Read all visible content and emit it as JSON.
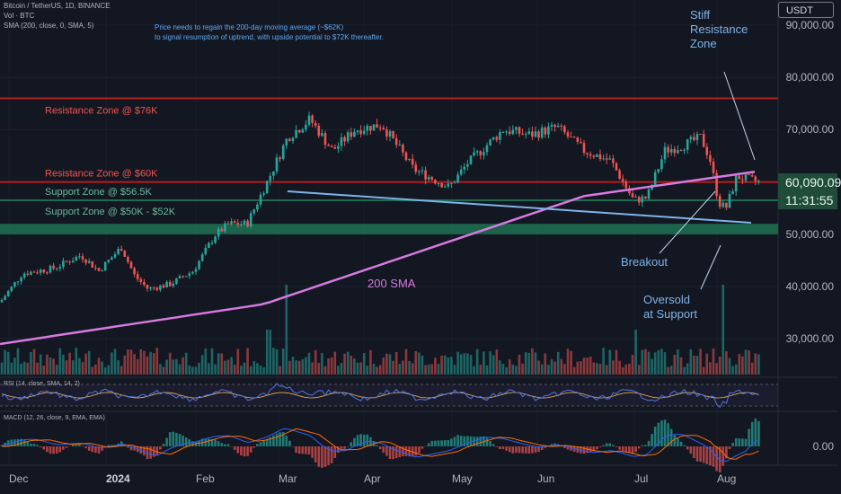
{
  "header": {
    "symbol_line": "Bitcoin / TetherUS, 1D, BINANCE",
    "vol_line": "Vol · BTC",
    "sma_line": "SMA (200, close, 0, SMA, 5)",
    "rsi_line": "RSI (14, close, SMA, 14, 2)",
    "macd_line": "MACD (12, 26, close, 9, EMA, EMA)"
  },
  "note": {
    "line1": "Price needs to regain the 200-day moving average (~$62K)",
    "line2": "to signal resumption of uptrend, with upside potential to $72K thereafter."
  },
  "price_axis": {
    "currency": "USDT",
    "ticks": [
      "90,000.00",
      "80,000.00",
      "70,000.00",
      "50,000.00",
      "40,000.00",
      "30,000.00"
    ],
    "current_price": "60,090.09",
    "countdown": "11:31:55",
    "macd_zero": "0.00"
  },
  "time_axis": {
    "labels": [
      "Dec",
      "2024",
      "Feb",
      "Mar",
      "Apr",
      "May",
      "Jun",
      "Jul",
      "Aug"
    ]
  },
  "colors": {
    "background": "#131722",
    "up": "#26a69a",
    "down": "#ef5350",
    "resistance": "#b71c1c",
    "support": "#1e6b50",
    "sma": "#d77ae0",
    "trendline": "#7fb3e8",
    "annotation": "#7fb3e8"
  },
  "chart_data": {
    "type": "candlestick",
    "y_range": [
      22000,
      94000
    ],
    "sma200": {
      "name": "200 SMA",
      "value_now": 62000
    },
    "levels": [
      {
        "label": "Resistance Zone @ $76K",
        "value": 76000,
        "kind": "resistance"
      },
      {
        "label": "Resistance Zone @ $60K",
        "value": 60000,
        "kind": "resistance"
      },
      {
        "label": "Support Zone @ $56.5K",
        "value": 56500,
        "kind": "support"
      },
      {
        "label": "Support Zone @ $50K - $52K",
        "from": 50000,
        "to": 52000,
        "kind": "support"
      }
    ],
    "annotations": [
      {
        "label_lines": [
          "Stiff",
          "Resistance",
          "Zone"
        ]
      },
      {
        "label_lines": [
          "Breakout"
        ]
      },
      {
        "label_lines": [
          "Oversold",
          "at Support"
        ]
      },
      {
        "label_lines": [
          "200 SMA"
        ]
      }
    ]
  }
}
